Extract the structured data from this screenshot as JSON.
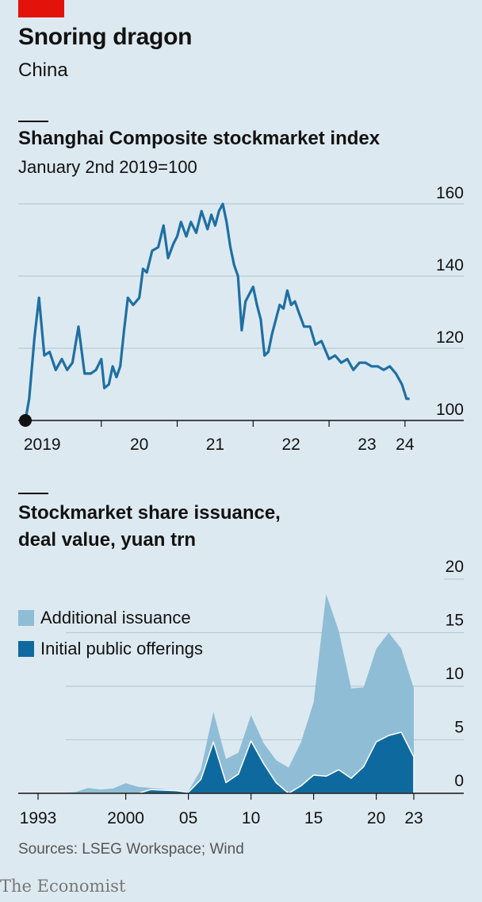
{
  "header": {
    "title": "Snoring dragon",
    "subtitle": "China"
  },
  "colors": {
    "accent": "#e3120b",
    "index_line": "#1f6fa3",
    "ipo": "#0e6a9e",
    "additional": "#8fbdd6",
    "grid": "#b7ccd7"
  },
  "chart_data": [
    {
      "type": "line",
      "title": "Shanghai Composite stockmarket index",
      "subtitle": "January 2nd 2019=100",
      "ylim": [
        100,
        160
      ],
      "yticks": [
        "100",
        "120",
        "140",
        "160"
      ],
      "xticks": [
        "2019",
        "20",
        "21",
        "22",
        "23",
        "24"
      ],
      "grid": true,
      "series": [
        {
          "x": [
            2019.0,
            2019.05,
            2019.12,
            2019.18,
            2019.25,
            2019.32,
            2019.4,
            2019.48,
            2019.55,
            2019.62,
            2019.7,
            2019.78,
            2019.86,
            2019.93,
            2020.0,
            2020.04,
            2020.1,
            2020.15,
            2020.2,
            2020.25,
            2020.3,
            2020.35,
            2020.42,
            2020.5,
            2020.55,
            2020.6,
            2020.67,
            2020.75,
            2020.82,
            2020.88,
            2020.95,
            2021.0,
            2021.05,
            2021.12,
            2021.18,
            2021.25,
            2021.32,
            2021.4,
            2021.45,
            2021.5,
            2021.55,
            2021.6,
            2021.65,
            2021.7,
            2021.75,
            2021.8,
            2021.85,
            2021.9,
            2021.95,
            2022.0,
            2022.05,
            2022.1,
            2022.15,
            2022.2,
            2022.25,
            2022.3,
            2022.35,
            2022.4,
            2022.45,
            2022.5,
            2022.55,
            2022.6,
            2022.67,
            2022.75,
            2022.82,
            2022.9,
            2023.0,
            2023.08,
            2023.16,
            2023.24,
            2023.32,
            2023.4,
            2023.48,
            2023.56,
            2023.64,
            2023.72,
            2023.8,
            2023.88,
            2023.96,
            2024.02,
            2024.06
          ],
          "values": [
            100,
            106,
            123,
            134,
            118,
            119,
            114,
            117,
            114,
            116,
            126,
            113,
            113,
            114,
            117,
            109,
            110,
            115,
            112,
            115,
            125,
            134,
            132,
            134,
            142,
            141,
            147,
            148,
            154,
            145,
            149,
            151,
            155,
            151,
            155,
            152,
            158,
            153,
            157,
            154,
            158,
            160,
            155,
            148,
            143,
            140,
            125,
            133,
            135,
            137,
            132,
            128,
            118,
            119,
            124,
            128,
            132,
            131,
            136,
            132,
            133,
            130,
            126,
            126,
            121,
            122,
            117,
            118,
            116,
            117,
            114,
            116,
            116,
            115,
            115,
            114,
            115,
            113,
            110,
            106,
            106
          ]
        }
      ]
    },
    {
      "type": "area",
      "title": "Stockmarket share issuance, deal value, yuan trn",
      "ylim": [
        0,
        20
      ],
      "yticks": [
        "0",
        "5",
        "10",
        "15",
        "20"
      ],
      "xticks": [
        "1993",
        "2000",
        "05",
        "10",
        "15",
        "20",
        "23"
      ],
      "grid": true,
      "legend": "top-left",
      "x": [
        1993,
        1994,
        1995,
        1996,
        1997,
        1998,
        1999,
        2000,
        2001,
        2002,
        2003,
        2004,
        2005,
        2006,
        2007,
        2008,
        2009,
        2010,
        2011,
        2012,
        2013,
        2014,
        2015,
        2016,
        2017,
        2018,
        2019,
        2020,
        2021,
        2022,
        2023
      ],
      "series": [
        {
          "name": "Additional issuance",
          "values": [
            0.02,
            0.03,
            0.05,
            0.12,
            0.5,
            0.35,
            0.45,
            0.95,
            0.6,
            0.5,
            0.4,
            0.3,
            0.2,
            2.2,
            7.6,
            3.2,
            3.8,
            7.3,
            4.7,
            3.1,
            2.4,
            4.8,
            8.5,
            18.6,
            15.2,
            9.8,
            9.9,
            13.5,
            15.0,
            13.5,
            9.8
          ]
        },
        {
          "name": "Initial public offerings",
          "values": [
            0,
            0,
            0,
            0,
            0,
            0,
            0,
            0,
            0,
            0.35,
            0.3,
            0.25,
            0.1,
            1.3,
            4.8,
            1.0,
            1.8,
            4.9,
            2.8,
            1.0,
            0,
            0.7,
            1.7,
            1.6,
            2.2,
            1.4,
            2.5,
            4.8,
            5.4,
            5.7,
            3.4
          ]
        }
      ]
    }
  ],
  "legend": {
    "additional_label": "Additional issuance",
    "ipo_label": "Initial public offerings"
  },
  "footer": {
    "source": "Sources: LSEG Workspace; Wind",
    "brand": "The Economist"
  }
}
